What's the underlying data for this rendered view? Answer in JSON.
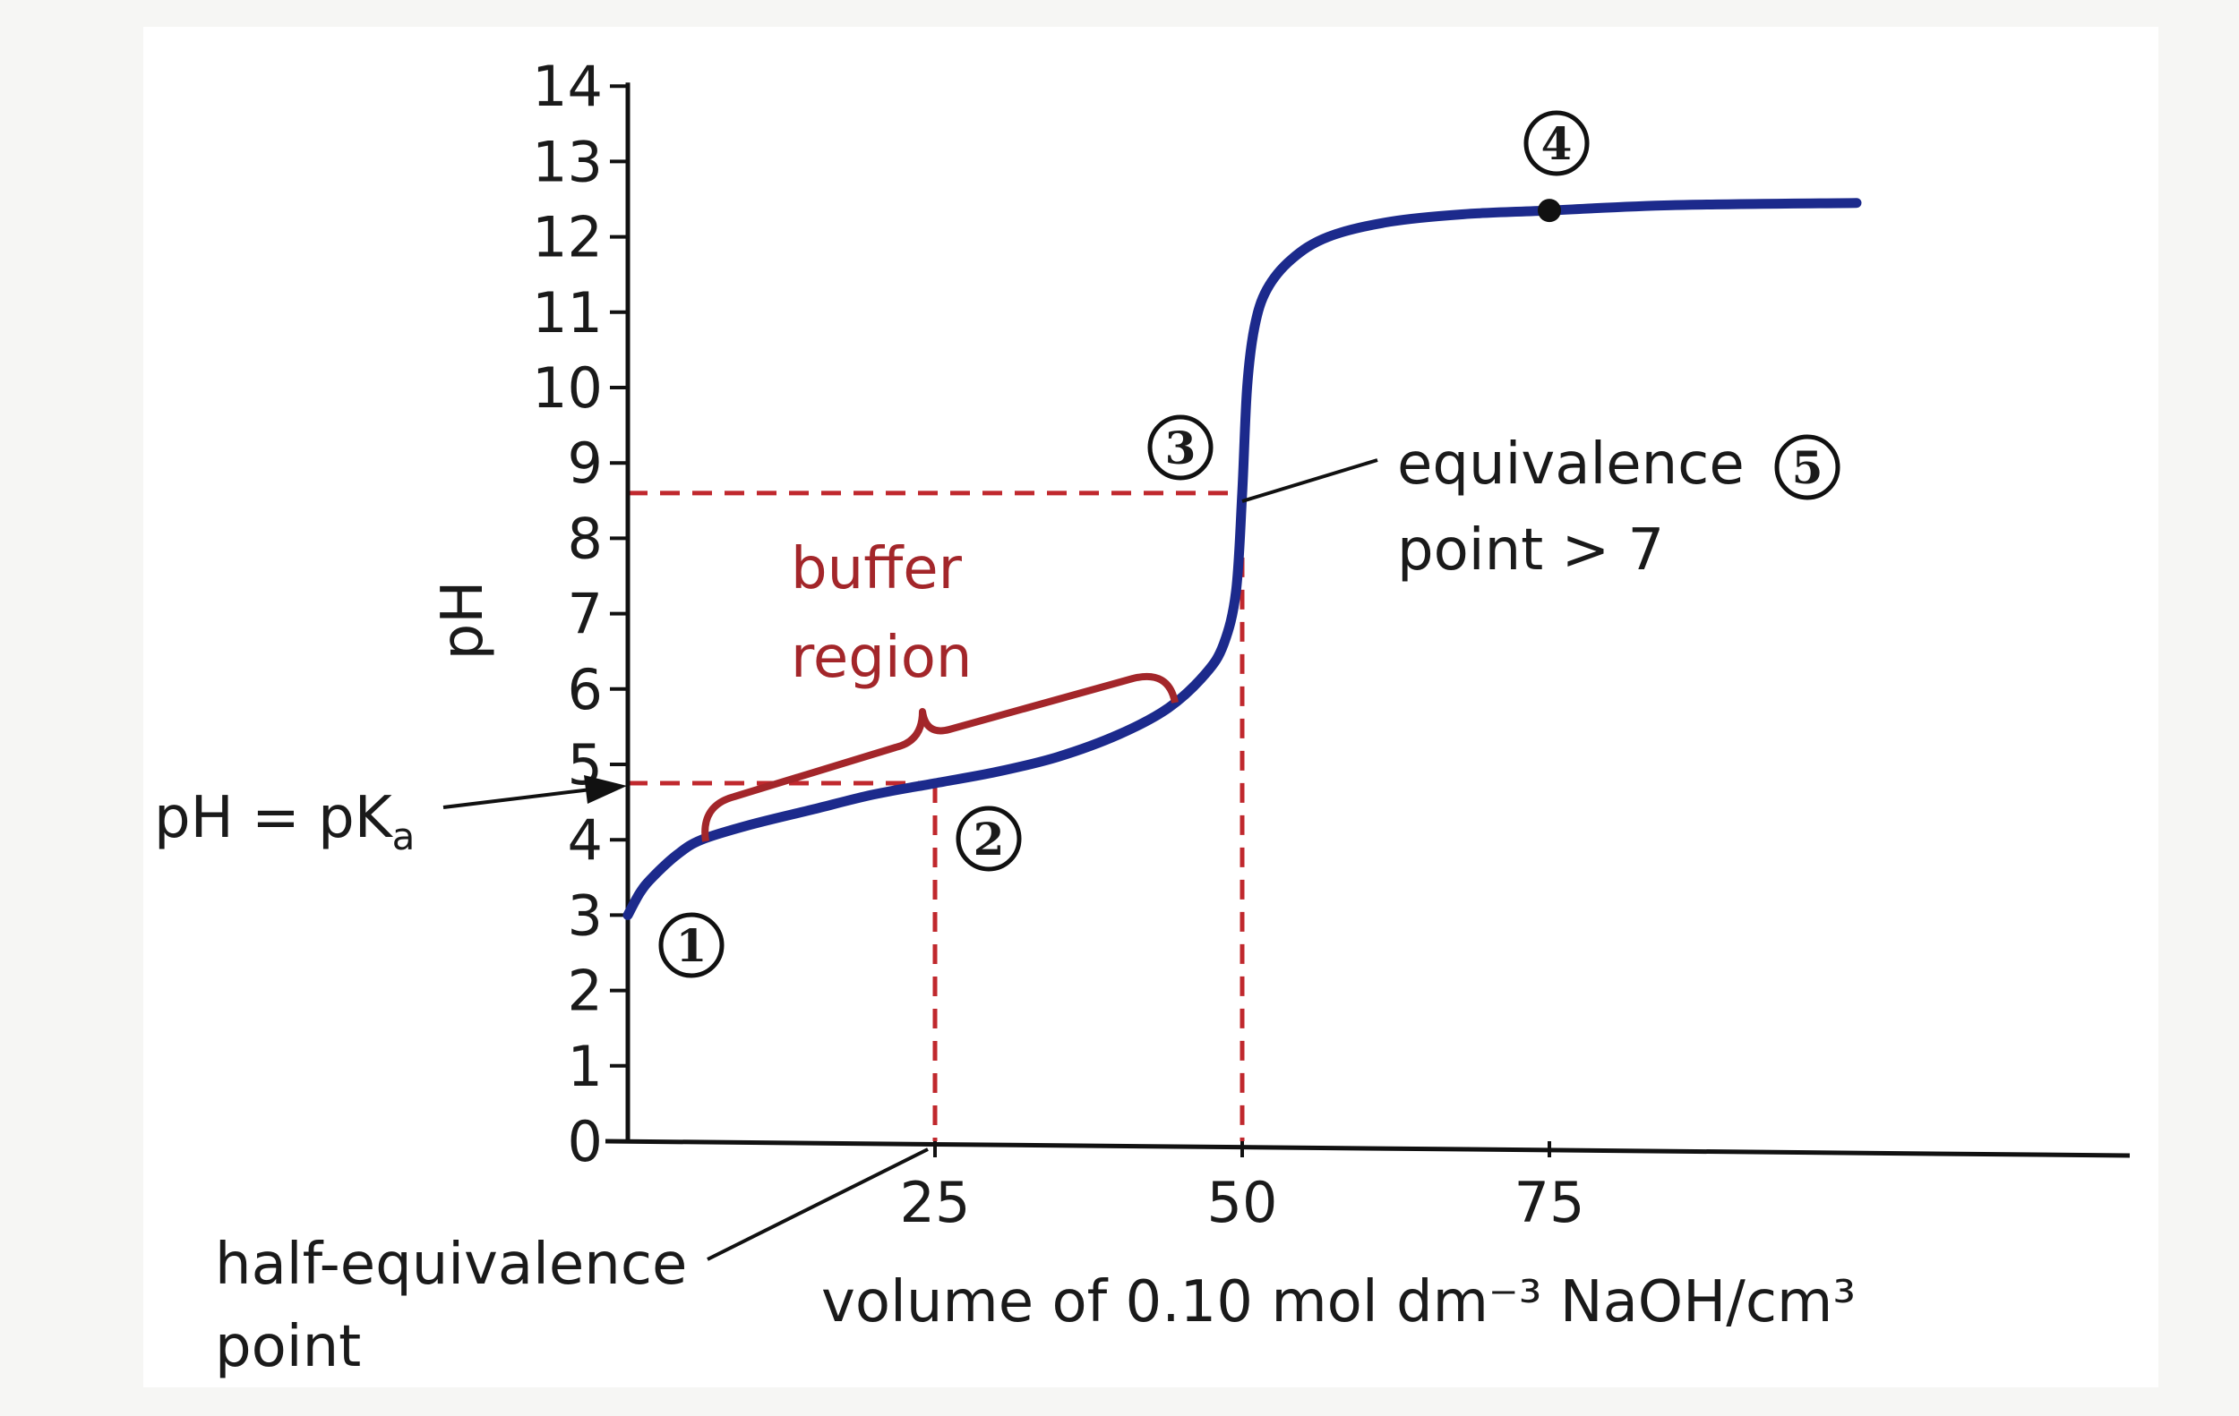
{
  "chart_data": {
    "type": "line",
    "title": "",
    "xlabel": "volume of 0.10 mol dm⁻³ NaOH/cm³",
    "ylabel": "pH",
    "xlim": [
      0,
      122
    ],
    "ylim": [
      0,
      14
    ],
    "x_ticks": [
      "25",
      "50",
      "75"
    ],
    "y_ticks": [
      "0",
      "1",
      "2",
      "3",
      "4",
      "5",
      "6",
      "7",
      "8",
      "9",
      "10",
      "11",
      "12",
      "13",
      "14"
    ],
    "grid": false,
    "series": [
      {
        "color": "#1c2a8c",
        "x": [
          0,
          1,
          2,
          4,
          6,
          10,
          15,
          20,
          25,
          30,
          35,
          40,
          44,
          47,
          48.5,
          49.5,
          50,
          50.4,
          51,
          52,
          54,
          57,
          62,
          68,
          75,
          85,
          100
        ],
        "y": [
          3.0,
          3.3,
          3.5,
          3.8,
          4.0,
          4.2,
          4.4,
          4.6,
          4.75,
          4.9,
          5.1,
          5.4,
          5.75,
          6.2,
          6.6,
          7.3,
          8.6,
          10.0,
          10.8,
          11.3,
          11.7,
          12.0,
          12.2,
          12.3,
          12.35,
          12.42,
          12.45
        ]
      }
    ],
    "reference_lines": [
      {
        "kind": "horizontal",
        "y": 8.6,
        "x_to": 50,
        "color": "#c0282d",
        "style": "dashed"
      },
      {
        "kind": "vertical",
        "x": 50,
        "y_to": 8.6,
        "color": "#c0282d",
        "style": "dashed"
      },
      {
        "kind": "horizontal",
        "y": 4.75,
        "x_to": 25,
        "color": "#c0282d",
        "style": "dashed"
      },
      {
        "kind": "vertical",
        "x": 25,
        "y_to": 4.75,
        "color": "#c0282d",
        "style": "dashed"
      }
    ],
    "marked_point": {
      "x": 75,
      "y": 12.35
    },
    "annotations": {
      "p1": "1",
      "p2": "2",
      "p3": "3",
      "p4": "4",
      "p5": "5",
      "buffer_line1": "buffer",
      "buffer_line2": "region",
      "equivalence_line1": "equivalence",
      "equivalence_line2": "point > 7",
      "pka_label": "pH = pK",
      "pka_subscript": "a",
      "half_eq_line1": "half-equivalence",
      "half_eq_line2": "point"
    }
  }
}
